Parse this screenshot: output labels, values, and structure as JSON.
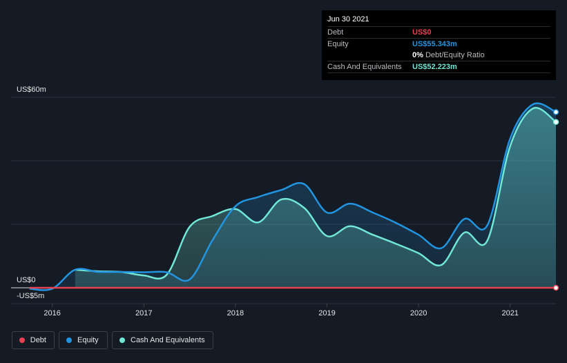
{
  "tooltip": {
    "date": "Jun 30 2021",
    "debt_label": "Debt",
    "debt_value": "US$0",
    "equity_label": "Equity",
    "equity_value": "US$55.343m",
    "ratio_value": "0%",
    "ratio_label": "Debt/Equity Ratio",
    "cash_label": "Cash And Equivalents",
    "cash_value": "US$52.223m"
  },
  "legend": [
    {
      "label": "Debt",
      "color": "#e84150"
    },
    {
      "label": "Equity",
      "color": "#2394df"
    },
    {
      "label": "Cash And Equivalents",
      "color": "#71e7d6"
    }
  ],
  "chart_data": {
    "type": "area",
    "title": "",
    "xlabel": "",
    "ylabel": "",
    "y_unit": "US$m",
    "ylim": [
      -5,
      60
    ],
    "yticks": [
      {
        "value": 60,
        "label": "US$60m"
      },
      {
        "value": 0,
        "label": "US$0"
      },
      {
        "value": -5,
        "label": "-US$5m"
      }
    ],
    "gridlines": [
      60,
      40,
      20
    ],
    "xlim": [
      2015.55,
      2021.5
    ],
    "xticks": [
      {
        "value": 2016,
        "label": "2016"
      },
      {
        "value": 2017,
        "label": "2017"
      },
      {
        "value": 2018,
        "label": "2018"
      },
      {
        "value": 2019,
        "label": "2019"
      },
      {
        "value": 2020,
        "label": "2020"
      },
      {
        "value": 2021,
        "label": "2021"
      }
    ],
    "series": [
      {
        "name": "Equity",
        "color": "#2394df",
        "points": [
          [
            2015.75,
            -0.3
          ],
          [
            2016.0,
            -0.3
          ],
          [
            2016.25,
            5.7
          ],
          [
            2016.5,
            5.0
          ],
          [
            2016.75,
            5.0
          ],
          [
            2017.0,
            4.9
          ],
          [
            2017.25,
            4.9
          ],
          [
            2017.5,
            2.6
          ],
          [
            2017.75,
            15.0
          ],
          [
            2018.0,
            25.7
          ],
          [
            2018.25,
            28.6
          ],
          [
            2018.5,
            30.8
          ],
          [
            2018.75,
            32.7
          ],
          [
            2019.0,
            23.7
          ],
          [
            2019.25,
            26.5
          ],
          [
            2019.5,
            23.7
          ],
          [
            2019.75,
            20.5
          ],
          [
            2020.0,
            16.7
          ],
          [
            2020.25,
            12.5
          ],
          [
            2020.5,
            21.7
          ],
          [
            2020.75,
            19.6
          ],
          [
            2021.0,
            47.0
          ],
          [
            2021.25,
            57.8
          ],
          [
            2021.5,
            55.343
          ]
        ]
      },
      {
        "name": "Cash And Equivalents",
        "color": "#71e7d6",
        "points": [
          [
            2016.25,
            5.7
          ],
          [
            2016.5,
            5.2
          ],
          [
            2016.75,
            5.0
          ],
          [
            2017.0,
            3.9
          ],
          [
            2017.25,
            4.1
          ],
          [
            2017.5,
            19.2
          ],
          [
            2017.75,
            22.6
          ],
          [
            2018.0,
            24.8
          ],
          [
            2018.25,
            20.6
          ],
          [
            2018.5,
            27.8
          ],
          [
            2018.75,
            25.2
          ],
          [
            2019.0,
            16.3
          ],
          [
            2019.25,
            19.4
          ],
          [
            2019.5,
            16.7
          ],
          [
            2019.75,
            13.9
          ],
          [
            2020.0,
            10.9
          ],
          [
            2020.25,
            7.2
          ],
          [
            2020.5,
            17.4
          ],
          [
            2020.75,
            14.8
          ],
          [
            2021.0,
            44.6
          ],
          [
            2021.25,
            56.5
          ],
          [
            2021.5,
            52.223
          ]
        ]
      },
      {
        "name": "Debt",
        "color": "#e84150",
        "points": [
          [
            2015.75,
            0
          ],
          [
            2021.5,
            0
          ]
        ]
      }
    ]
  }
}
